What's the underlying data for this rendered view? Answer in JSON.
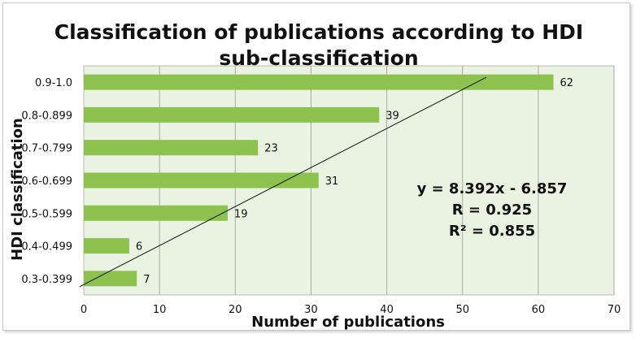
{
  "chart_data": {
    "type": "bar",
    "orientation": "horizontal",
    "title_lines": [
      "Classification of publications according to HDI",
      "sub-classification"
    ],
    "xlabel": "Number of publications",
    "ylabel": "HDI classification",
    "categories": [
      "0.3-0.399",
      "0.4-0.499",
      "0.5-0.599",
      "0.6-0.699",
      "0.7-0.799",
      "0.8-0.899",
      "0.9-1.0"
    ],
    "values": [
      7,
      6,
      19,
      31,
      23,
      39,
      62
    ],
    "xlim": [
      0,
      70
    ],
    "xticks": [
      0,
      10,
      20,
      30,
      40,
      50,
      60,
      70
    ],
    "grid": "vertical",
    "bar_color": "#8dc24f",
    "plot_background": "#eaf3e2",
    "trendline": {
      "type": "linear",
      "slope": 8.392,
      "intercept": -6.857
    },
    "annotations": [
      "y = 8.392x - 6.857",
      "R = 0.925",
      "R² = 0.855"
    ]
  }
}
